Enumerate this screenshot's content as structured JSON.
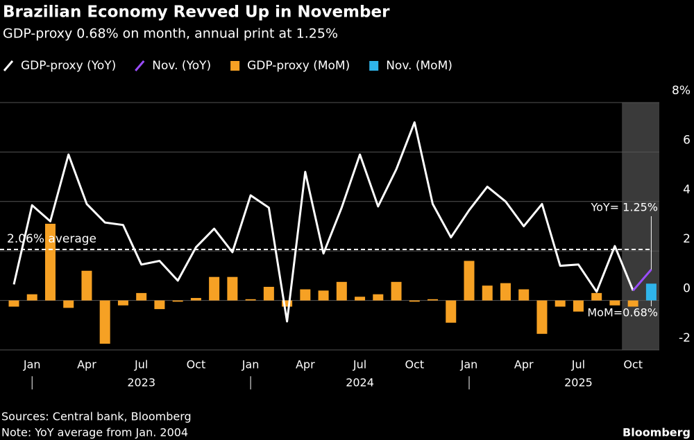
{
  "chart_data": {
    "type": "bar-line",
    "title": "Brazilian Economy Revved Up in November",
    "subtitle": "GDP-proxy 0.68% on month, annual print at 1.25%",
    "categories": [
      null,
      "Jan",
      null,
      null,
      "Apr",
      null,
      null,
      "Jul",
      null,
      null,
      "Oct",
      null,
      null,
      "Jan",
      null,
      null,
      "Apr",
      null,
      null,
      "Jul",
      null,
      null,
      "Oct",
      null,
      null,
      "Jan",
      null,
      null,
      "Apr",
      null,
      null,
      "Jul",
      null,
      null,
      "Oct",
      null
    ],
    "year_labels": [
      "2023",
      "2024",
      "2025"
    ],
    "series": [
      {
        "name": "GDP-proxy (YoY)",
        "kind": "line",
        "color": "#ffffff",
        "values": [
          0.65,
          3.85,
          3.2,
          5.9,
          3.9,
          3.15,
          3.05,
          1.45,
          1.6,
          0.8,
          2.15,
          2.9,
          1.95,
          4.25,
          3.75,
          -0.85,
          5.2,
          1.9,
          3.75,
          5.9,
          3.8,
          5.3,
          7.2,
          3.9,
          2.55,
          3.65,
          4.6,
          4.0,
          3.0,
          3.9,
          1.4,
          1.45,
          0.35,
          2.2,
          0.4,
          null
        ]
      },
      {
        "name": "Nov. (YoY)",
        "kind": "line",
        "color": "#9b4dff",
        "values": [
          null,
          null,
          null,
          null,
          null,
          null,
          null,
          null,
          null,
          null,
          null,
          null,
          null,
          null,
          null,
          null,
          null,
          null,
          null,
          null,
          null,
          null,
          null,
          null,
          null,
          null,
          null,
          null,
          null,
          null,
          null,
          null,
          null,
          null,
          0.4,
          1.25
        ]
      },
      {
        "name": "GDP-proxy (MoM)",
        "kind": "bar",
        "color": "#f6a124",
        "values": [
          -0.25,
          0.25,
          3.1,
          -0.3,
          1.2,
          -1.75,
          -0.2,
          0.3,
          -0.35,
          -0.05,
          0.1,
          0.95,
          0.95,
          0.05,
          0.55,
          -0.25,
          0.45,
          0.4,
          0.75,
          0.15,
          0.25,
          0.75,
          -0.05,
          0.05,
          -0.9,
          1.6,
          0.6,
          0.7,
          0.45,
          -1.35,
          -0.25,
          -0.45,
          0.3,
          -0.2,
          -0.25,
          null
        ]
      },
      {
        "name": "Nov. (MoM)",
        "kind": "bar",
        "color": "#2fb4ea",
        "values": [
          null,
          null,
          null,
          null,
          null,
          null,
          null,
          null,
          null,
          null,
          null,
          null,
          null,
          null,
          null,
          null,
          null,
          null,
          null,
          null,
          null,
          null,
          null,
          null,
          null,
          null,
          null,
          null,
          null,
          null,
          null,
          null,
          null,
          null,
          null,
          0.68
        ]
      }
    ],
    "average": {
      "value": 2.06,
      "label": "2.06% average"
    },
    "annotations": {
      "yoy": "YoY= 1.25%",
      "mom": "MoM=0.68%"
    },
    "ylim": [
      -2,
      8
    ],
    "yticks": [
      -2,
      0,
      2,
      4,
      6,
      {
        "value": 8,
        "label": "8%"
      }
    ],
    "grid": true,
    "footer": {
      "sources": "Sources: Central bank, Bloomberg",
      "note": "Note: YoY average from Jan. 2004",
      "brand": "Bloomberg"
    }
  }
}
